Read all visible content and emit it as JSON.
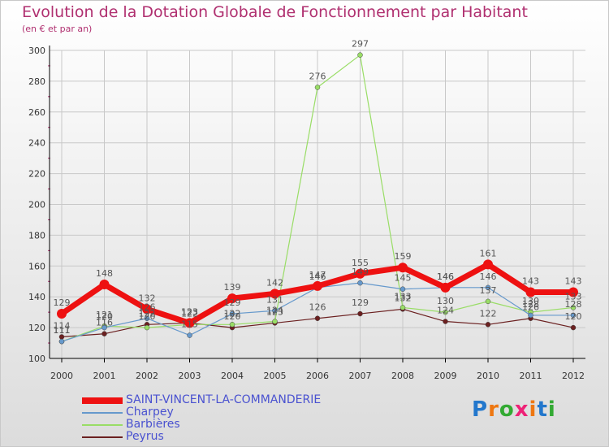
{
  "header": {
    "title": "Evolution de la Dotation Globale de Fonctionnement par Habitant",
    "subtitle": "(en € et par an)"
  },
  "logo": {
    "text": "Proxiti"
  },
  "colors": {
    "title": "#b03070",
    "legend_text": "#4a52d0",
    "axis": "#000000",
    "grid": "#c8c8c8",
    "tick_mark": "#b03070"
  },
  "chart_data": {
    "type": "line",
    "x": [
      "2000",
      "2001",
      "2002",
      "2003",
      "2004",
      "2005",
      "2006",
      "2007",
      "2008",
      "2009",
      "2010",
      "2011",
      "2012"
    ],
    "ylim": [
      100,
      300
    ],
    "yticks": [
      100,
      120,
      140,
      160,
      180,
      200,
      220,
      240,
      260,
      280,
      300
    ],
    "grid": true,
    "legend_position": "bottom-left",
    "series": [
      {
        "name": "SAINT-VINCENT-LA-COMMANDERIE",
        "color": "#ee1111",
        "width": 7,
        "values": [
          129,
          148,
          132,
          123,
          139,
          142,
          147,
          155,
          159,
          146,
          161,
          143,
          143
        ]
      },
      {
        "name": "Charpey",
        "color": "#6699cc",
        "width": 1.2,
        "values": [
          111,
          120,
          126,
          115,
          129,
          131,
          146,
          149,
          145,
          146,
          146,
          128,
          128
        ]
      },
      {
        "name": "Barbières",
        "color": "#99dd66",
        "width": 1.2,
        "values": [
          111,
          121,
          120,
          122,
          122,
          124,
          276,
          297,
          133,
          130,
          137,
          130,
          133
        ]
      },
      {
        "name": "Peyrus",
        "color": "#6b2020",
        "width": 1.2,
        "values": [
          114,
          116,
          122,
          123,
          120,
          123,
          126,
          129,
          132,
          124,
          122,
          126,
          120
        ]
      }
    ]
  }
}
